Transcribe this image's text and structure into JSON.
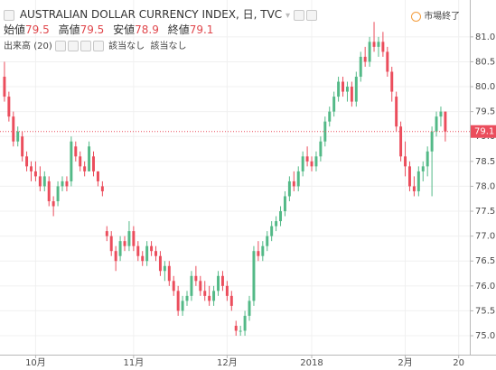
{
  "chart_data": {
    "type": "candlestick",
    "title": "AUSTRALIAN DOLLAR CURRENCY INDEX, 日, TVC",
    "ohlc_labels": [
      "始値",
      "高値",
      "安値",
      "終値"
    ],
    "volume_label": "出来高",
    "volume_period": "(20)",
    "volume_values": [
      "該当なし",
      "該当なし"
    ],
    "market_status": "市場終了",
    "up_color": "#53b987",
    "down_color": "#eb4d5c",
    "open": [
      80.2,
      79.8,
      79.4,
      78.9,
      79.0,
      78.6,
      78.4,
      78.3,
      78.2,
      78.0,
      78.1,
      77.7,
      77.7,
      78.0,
      78.1,
      78.1,
      78.8,
      78.6,
      78.4,
      78.3,
      78.6,
      78.3,
      78.0,
      77.1,
      77.0,
      76.7,
      76.6,
      76.9,
      76.8,
      77.1,
      76.8,
      76.6,
      76.5,
      76.8,
      76.7,
      76.6,
      76.3,
      76.4,
      76.1,
      75.9,
      75.5,
      75.7,
      75.8,
      76.2,
      76.1,
      75.9,
      75.8,
      75.7,
      75.9,
      76.2,
      76.0,
      75.8,
      75.2,
      75.1,
      75.1,
      75.4,
      75.7,
      76.7,
      76.6,
      76.8,
      77.0,
      77.2,
      77.3,
      77.5,
      77.8,
      78.1,
      78.0,
      78.3,
      78.6,
      78.5,
      78.4,
      78.6,
      78.9,
      79.3,
      79.5,
      79.8,
      80.1,
      79.9,
      80.0,
      79.7,
      80.2,
      80.6,
      80.5,
      80.9,
      80.8,
      80.9,
      80.7,
      80.3,
      79.8,
      79.2,
      78.6,
      78.4,
      78.0,
      77.9,
      78.3,
      78.4,
      78.7,
      79.1,
      79.4,
      79.5
    ],
    "high": [
      80.5,
      79.9,
      79.5,
      79.2,
      79.1,
      78.7,
      78.5,
      78.5,
      78.4,
      78.3,
      78.2,
      77.8,
      78.1,
      78.2,
      78.2,
      79.0,
      78.9,
      78.7,
      78.5,
      78.9,
      78.7,
      78.3,
      78.1,
      77.2,
      77.1,
      76.8,
      77.0,
      77.0,
      77.3,
      77.2,
      76.9,
      76.7,
      76.9,
      76.9,
      76.8,
      76.7,
      76.5,
      76.5,
      76.2,
      76.0,
      75.8,
      75.9,
      76.3,
      76.4,
      76.2,
      76.1,
      76.0,
      76.0,
      76.3,
      76.3,
      76.1,
      75.9,
      75.3,
      75.2,
      75.5,
      75.8,
      76.8,
      76.9,
      76.9,
      77.1,
      77.3,
      77.4,
      77.6,
      77.9,
      78.2,
      78.3,
      78.4,
      78.7,
      78.8,
      78.6,
      78.7,
      79.0,
      79.4,
      79.6,
      79.9,
      80.2,
      80.2,
      80.1,
      80.1,
      80.3,
      80.7,
      80.8,
      81.0,
      81.3,
      81.0,
      81.1,
      80.8,
      80.4,
      79.9,
      79.3,
      78.9,
      78.5,
      78.2,
      78.4,
      78.5,
      78.8,
      79.2,
      79.5,
      79.6,
      79.5
    ],
    "low": [
      79.7,
      79.3,
      78.8,
      78.8,
      78.5,
      78.3,
      78.1,
      78.1,
      77.9,
      77.9,
      77.6,
      77.4,
      77.6,
      77.9,
      77.9,
      78.0,
      78.5,
      78.3,
      78.2,
      78.3,
      78.2,
      78.0,
      77.8,
      76.9,
      76.6,
      76.3,
      76.5,
      76.7,
      76.7,
      76.7,
      76.5,
      76.4,
      76.4,
      76.6,
      76.5,
      76.2,
      76.1,
      76.0,
      75.8,
      75.4,
      75.4,
      75.6,
      75.7,
      76.0,
      75.8,
      75.7,
      75.6,
      75.6,
      75.8,
      75.9,
      75.7,
      75.5,
      75.0,
      75.0,
      75.0,
      75.3,
      75.6,
      76.5,
      76.5,
      76.7,
      76.9,
      77.1,
      77.2,
      77.4,
      77.7,
      77.9,
      77.9,
      78.2,
      78.4,
      78.3,
      78.3,
      78.5,
      78.8,
      79.2,
      79.4,
      79.7,
      79.8,
      79.7,
      79.6,
      79.6,
      80.1,
      80.4,
      80.4,
      80.7,
      80.6,
      80.6,
      80.2,
      79.7,
      79.1,
      78.5,
      78.2,
      77.9,
      77.8,
      77.8,
      78.1,
      78.2,
      77.8,
      79.0,
      79.2,
      78.9
    ],
    "close": [
      79.8,
      79.4,
      78.9,
      79.1,
      78.6,
      78.4,
      78.3,
      78.2,
      78.0,
      78.2,
      77.7,
      77.6,
      78.0,
      78.1,
      78.0,
      78.9,
      78.6,
      78.4,
      78.3,
      78.8,
      78.3,
      78.1,
      77.9,
      77.0,
      76.7,
      76.5,
      76.9,
      76.8,
      77.1,
      76.8,
      76.6,
      76.5,
      76.8,
      76.7,
      76.6,
      76.3,
      76.4,
      76.1,
      75.9,
      75.5,
      75.7,
      75.8,
      76.2,
      76.1,
      75.9,
      75.8,
      75.7,
      75.9,
      76.2,
      76.0,
      75.8,
      75.6,
      75.1,
      75.1,
      75.4,
      75.7,
      76.7,
      76.6,
      76.8,
      77.0,
      77.2,
      77.3,
      77.5,
      77.8,
      78.1,
      78.0,
      78.3,
      78.6,
      78.5,
      78.4,
      78.6,
      78.9,
      79.3,
      79.5,
      79.8,
      80.1,
      79.9,
      80.0,
      79.7,
      80.2,
      80.6,
      80.5,
      80.9,
      80.8,
      80.9,
      80.7,
      80.3,
      79.9,
      79.2,
      78.6,
      78.4,
      78.0,
      77.9,
      78.3,
      78.4,
      78.7,
      79.1,
      79.4,
      79.5,
      79.1
    ],
    "xlim": [
      -1,
      104.5
    ],
    "xticks": [
      {
        "value": 7,
        "label": "10月"
      },
      {
        "value": 29,
        "label": "11月"
      },
      {
        "value": 50,
        "label": "12月"
      },
      {
        "value": 69,
        "label": "2018"
      },
      {
        "value": 90,
        "label": "2月"
      },
      {
        "value": 102,
        "label": "20"
      }
    ],
    "ylim": [
      74.62,
      81.74
    ],
    "yticks": [
      {
        "value": 75,
        "label": "75.0"
      },
      75.5,
      {
        "value": 76,
        "label": "76.0"
      },
      76.5,
      {
        "value": 77,
        "label": "77.0"
      },
      77.5,
      {
        "value": 78,
        "label": "78.0"
      },
      78.5,
      {
        "value": 79,
        "label": "79.0"
      },
      79.5,
      {
        "value": 80,
        "label": "80.0"
      },
      80.5,
      {
        "value": 81,
        "label": "81.0"
      }
    ],
    "grid": true
  }
}
